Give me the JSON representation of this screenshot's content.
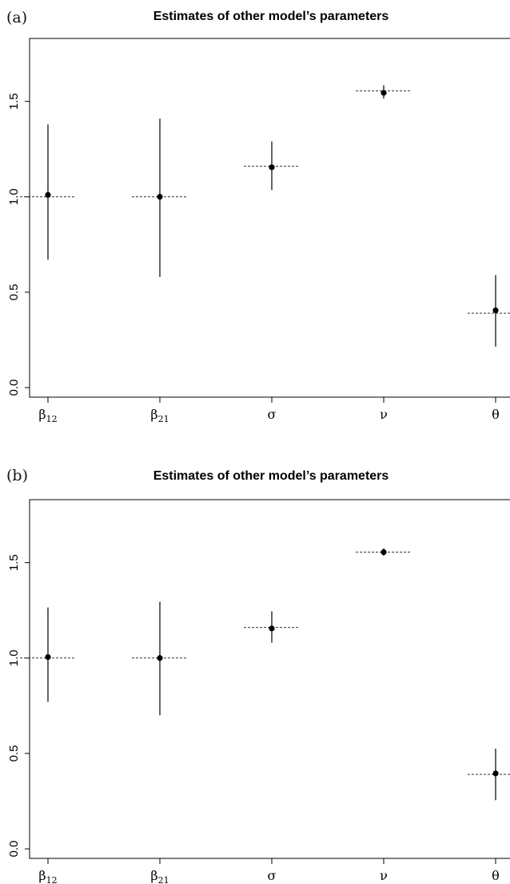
{
  "chart_data": [
    {
      "panel_label": "(a)",
      "type": "scatter",
      "title": "Estimates of other model’s parameters",
      "categories": [
        "β12",
        "β21",
        "σ",
        "ν",
        "θ"
      ],
      "category_labels": [
        {
          "base": "β",
          "sub": "12"
        },
        {
          "base": "β",
          "sub": "21"
        },
        {
          "base": "σ",
          "sub": ""
        },
        {
          "base": "ν",
          "sub": ""
        },
        {
          "base": "θ",
          "sub": ""
        }
      ],
      "estimates": [
        1.01,
        1.0,
        1.155,
        1.545,
        0.405
      ],
      "lower": [
        0.67,
        0.58,
        1.035,
        1.515,
        0.215
      ],
      "upper": [
        1.38,
        1.41,
        1.29,
        1.585,
        0.59
      ],
      "true_values": [
        1.0,
        1.0,
        1.16,
        1.555,
        0.39
      ],
      "ylim": [
        -0.05,
        1.83
      ],
      "yticks": [
        0.0,
        0.5,
        1.0,
        1.5
      ],
      "ytick_labels": [
        "0.0",
        "0.5",
        "1.0",
        "1.5"
      ]
    },
    {
      "panel_label": "(b)",
      "type": "scatter",
      "title": "Estimates of other model’s parameters",
      "categories": [
        "β12",
        "β21",
        "σ",
        "ν",
        "θ"
      ],
      "category_labels": [
        {
          "base": "β",
          "sub": "12"
        },
        {
          "base": "β",
          "sub": "21"
        },
        {
          "base": "σ",
          "sub": ""
        },
        {
          "base": "ν",
          "sub": ""
        },
        {
          "base": "θ",
          "sub": ""
        }
      ],
      "estimates": [
        1.005,
        1.0,
        1.155,
        1.555,
        0.395
      ],
      "lower": [
        0.77,
        0.7,
        1.08,
        1.535,
        0.255
      ],
      "upper": [
        1.265,
        1.295,
        1.245,
        1.575,
        0.525
      ],
      "true_values": [
        1.0,
        1.0,
        1.16,
        1.555,
        0.39
      ],
      "ylim": [
        -0.05,
        1.83
      ],
      "yticks": [
        0.0,
        0.5,
        1.0,
        1.5
      ],
      "ytick_labels": [
        "0.0",
        "0.5",
        "1.0",
        "1.5"
      ]
    }
  ]
}
